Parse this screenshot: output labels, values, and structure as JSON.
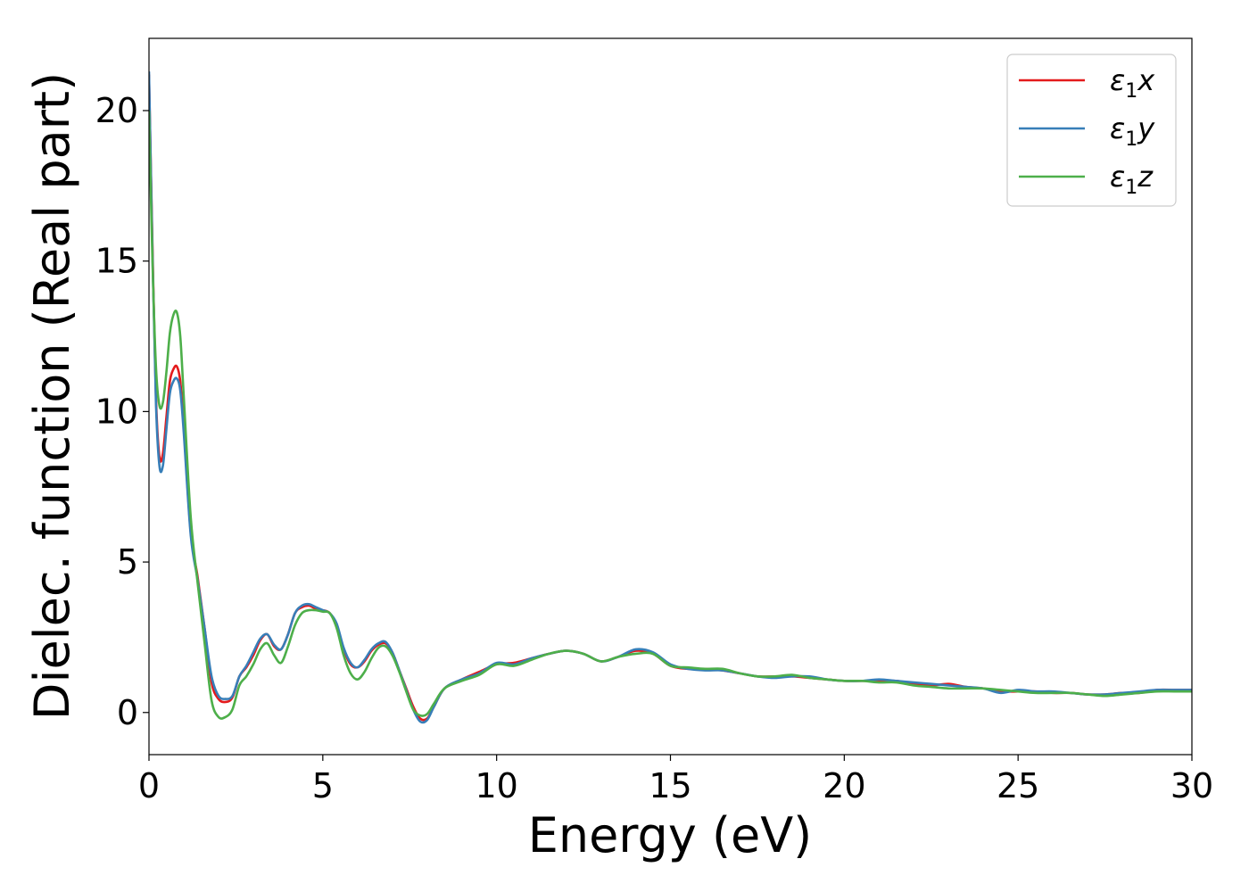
{
  "chart_data": {
    "type": "line",
    "xlabel": "Energy (eV)",
    "ylabel": "Dielec. function (Real part)",
    "xlim": [
      0,
      30
    ],
    "ylim": [
      -1.4,
      22.4
    ],
    "xticks": [
      0,
      5,
      10,
      15,
      20,
      25,
      30
    ],
    "yticks": [
      0,
      5,
      10,
      15,
      20
    ],
    "grid": false,
    "legend_position": "top-right",
    "series": [
      {
        "name": "ε1x",
        "symbol": "ε",
        "subscript": "1",
        "axis": "x",
        "color": "#e41a1c",
        "x": [
          0,
          0.1,
          0.2,
          0.3,
          0.4,
          0.5,
          0.6,
          0.7,
          0.8,
          0.9,
          1.0,
          1.2,
          1.4,
          1.6,
          1.8,
          2.0,
          2.2,
          2.4,
          2.6,
          2.8,
          3.0,
          3.2,
          3.4,
          3.6,
          3.8,
          4.0,
          4.2,
          4.4,
          4.6,
          4.8,
          5.0,
          5.2,
          5.4,
          5.6,
          5.8,
          6.0,
          6.2,
          6.4,
          6.6,
          6.8,
          7.0,
          7.2,
          7.4,
          7.6,
          7.8,
          8.0,
          8.2,
          8.5,
          9.0,
          9.5,
          10.0,
          10.5,
          11.0,
          11.5,
          12.0,
          12.5,
          13.0,
          13.5,
          14.0,
          14.5,
          15.0,
          15.5,
          16.0,
          16.5,
          17.0,
          17.5,
          18.0,
          18.5,
          19.0,
          19.5,
          20.0,
          20.5,
          21.0,
          21.5,
          22.0,
          22.5,
          23.0,
          23.5,
          24.0,
          24.5,
          25.0,
          25.5,
          26.0,
          26.5,
          27.0,
          27.5,
          28.0,
          28.5,
          29.0,
          29.5,
          30.0
        ],
        "y": [
          21.2,
          15.5,
          10.5,
          8.5,
          8.6,
          9.8,
          11.0,
          11.4,
          11.5,
          11.0,
          9.5,
          6.0,
          4.5,
          2.8,
          1.0,
          0.45,
          0.35,
          0.5,
          1.2,
          1.5,
          1.9,
          2.4,
          2.6,
          2.2,
          2.1,
          2.6,
          3.3,
          3.5,
          3.55,
          3.45,
          3.4,
          3.3,
          2.9,
          2.1,
          1.6,
          1.5,
          1.7,
          2.05,
          2.25,
          2.3,
          2.0,
          1.4,
          0.8,
          0.2,
          -0.2,
          -0.2,
          0.2,
          0.8,
          1.1,
          1.35,
          1.6,
          1.65,
          1.8,
          1.95,
          2.05,
          1.95,
          1.7,
          1.85,
          2.05,
          1.95,
          1.55,
          1.45,
          1.45,
          1.4,
          1.3,
          1.2,
          1.2,
          1.2,
          1.15,
          1.1,
          1.05,
          1.05,
          1.05,
          1.05,
          0.95,
          0.9,
          0.95,
          0.85,
          0.8,
          0.7,
          0.7,
          0.7,
          0.65,
          0.65,
          0.6,
          0.6,
          0.65,
          0.65,
          0.75,
          0.75,
          0.75
        ]
      },
      {
        "name": "ε1y",
        "symbol": "ε",
        "subscript": "1",
        "axis": "y",
        "color": "#377eb8",
        "x": [
          0,
          0.1,
          0.2,
          0.3,
          0.4,
          0.5,
          0.6,
          0.7,
          0.8,
          0.9,
          1.0,
          1.2,
          1.4,
          1.6,
          1.8,
          2.0,
          2.2,
          2.4,
          2.6,
          2.8,
          3.0,
          3.2,
          3.4,
          3.6,
          3.8,
          4.0,
          4.2,
          4.4,
          4.6,
          4.8,
          5.0,
          5.2,
          5.4,
          5.6,
          5.8,
          6.0,
          6.2,
          6.4,
          6.6,
          6.8,
          7.0,
          7.2,
          7.4,
          7.6,
          7.8,
          8.0,
          8.2,
          8.5,
          9.0,
          9.5,
          10.0,
          10.5,
          11.0,
          11.5,
          12.0,
          12.5,
          13.0,
          13.5,
          14.0,
          14.5,
          15.0,
          15.5,
          16.0,
          16.5,
          17.0,
          17.5,
          18.0,
          18.5,
          19.0,
          19.5,
          20.0,
          20.5,
          21.0,
          21.5,
          22.0,
          22.5,
          23.0,
          23.5,
          24.0,
          24.5,
          25.0,
          25.5,
          26.0,
          26.5,
          27.0,
          27.5,
          28.0,
          28.5,
          29.0,
          29.5,
          30.0
        ],
        "y": [
          21.3,
          15.3,
          10.3,
          8.2,
          8.2,
          9.4,
          10.6,
          11.0,
          11.1,
          10.7,
          9.3,
          5.9,
          4.4,
          2.8,
          1.2,
          0.55,
          0.45,
          0.55,
          1.2,
          1.55,
          2.0,
          2.45,
          2.6,
          2.25,
          2.1,
          2.6,
          3.3,
          3.55,
          3.6,
          3.5,
          3.4,
          3.3,
          2.95,
          2.15,
          1.65,
          1.5,
          1.75,
          2.1,
          2.3,
          2.35,
          2.0,
          1.4,
          0.75,
          0.1,
          -0.3,
          -0.25,
          0.2,
          0.8,
          1.1,
          1.3,
          1.65,
          1.6,
          1.8,
          1.95,
          2.05,
          1.95,
          1.7,
          1.85,
          2.1,
          2.0,
          1.6,
          1.45,
          1.4,
          1.4,
          1.3,
          1.2,
          1.15,
          1.2,
          1.2,
          1.1,
          1.05,
          1.05,
          1.1,
          1.05,
          1.0,
          0.95,
          0.9,
          0.85,
          0.8,
          0.65,
          0.75,
          0.7,
          0.7,
          0.65,
          0.6,
          0.6,
          0.65,
          0.7,
          0.75,
          0.75,
          0.75
        ]
      },
      {
        "name": "ε1z",
        "symbol": "ε",
        "subscript": "1",
        "axis": "z",
        "color": "#4daf4a",
        "x": [
          0,
          0.1,
          0.2,
          0.3,
          0.4,
          0.5,
          0.6,
          0.7,
          0.8,
          0.9,
          1.0,
          1.2,
          1.4,
          1.6,
          1.8,
          2.0,
          2.2,
          2.4,
          2.6,
          2.8,
          3.0,
          3.2,
          3.4,
          3.6,
          3.8,
          4.0,
          4.2,
          4.4,
          4.6,
          4.8,
          5.0,
          5.2,
          5.4,
          5.6,
          5.8,
          6.0,
          6.2,
          6.4,
          6.6,
          6.8,
          7.0,
          7.2,
          7.4,
          7.6,
          7.8,
          8.0,
          8.2,
          8.5,
          9.0,
          9.5,
          10.0,
          10.5,
          11.0,
          11.5,
          12.0,
          12.5,
          13.0,
          13.5,
          14.0,
          14.5,
          15.0,
          15.5,
          16.0,
          16.5,
          17.0,
          17.5,
          18.0,
          18.5,
          19.0,
          19.5,
          20.0,
          20.5,
          21.0,
          21.5,
          22.0,
          22.5,
          23.0,
          23.5,
          24.0,
          24.5,
          25.0,
          25.5,
          26.0,
          26.5,
          27.0,
          27.5,
          28.0,
          28.5,
          29.0,
          29.5,
          30.0
        ],
        "y": [
          20.0,
          15.0,
          11.5,
          10.2,
          10.3,
          11.3,
          12.6,
          13.2,
          13.3,
          12.5,
          10.5,
          6.5,
          4.3,
          2.3,
          0.4,
          -0.15,
          -0.15,
          0.1,
          0.9,
          1.2,
          1.6,
          2.1,
          2.3,
          1.9,
          1.65,
          2.2,
          2.9,
          3.3,
          3.4,
          3.4,
          3.35,
          3.3,
          2.8,
          1.9,
          1.3,
          1.1,
          1.35,
          1.8,
          2.15,
          2.2,
          1.9,
          1.35,
          0.7,
          0.1,
          -0.1,
          -0.05,
          0.3,
          0.8,
          1.05,
          1.25,
          1.6,
          1.55,
          1.75,
          1.95,
          2.05,
          1.95,
          1.7,
          1.85,
          1.95,
          1.95,
          1.55,
          1.5,
          1.45,
          1.45,
          1.3,
          1.2,
          1.2,
          1.25,
          1.15,
          1.1,
          1.05,
          1.05,
          1.0,
          1.0,
          0.9,
          0.85,
          0.8,
          0.8,
          0.8,
          0.75,
          0.7,
          0.65,
          0.65,
          0.65,
          0.6,
          0.55,
          0.6,
          0.65,
          0.7,
          0.7,
          0.7
        ]
      }
    ]
  }
}
